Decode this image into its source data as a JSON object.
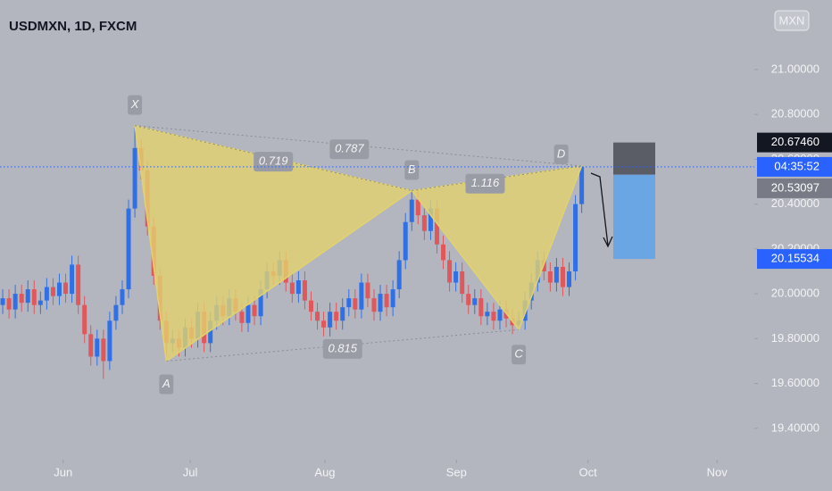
{
  "chart_data": {
    "type": "candlestick",
    "title": "USDMXN, 1D, FXCM",
    "currency": "MXN",
    "x": [
      0,
      1,
      2,
      3,
      4,
      5,
      6,
      7,
      8,
      9,
      10,
      11,
      12,
      13,
      14,
      15,
      16,
      17,
      18,
      19,
      20,
      21,
      22,
      23,
      24,
      25,
      26,
      27,
      28,
      29,
      30,
      31,
      32,
      33,
      34,
      35,
      36,
      37,
      38,
      39,
      40,
      41,
      42,
      43,
      44,
      45,
      46,
      47,
      48,
      49,
      50,
      51,
      52,
      53,
      54,
      55,
      56,
      57,
      58,
      59,
      60,
      61,
      62,
      63,
      64,
      65,
      66,
      67,
      68,
      69,
      70,
      71,
      72,
      73,
      74,
      75,
      76,
      77,
      78,
      79,
      80,
      81,
      82,
      83,
      84,
      85,
      86,
      87,
      88,
      89,
      90,
      91,
      92
    ],
    "open": [
      19.95,
      19.98,
      19.93,
      20.0,
      19.96,
      20.02,
      19.95,
      19.97,
      20.03,
      19.99,
      20.05,
      20.0,
      20.13,
      19.95,
      19.82,
      19.72,
      19.8,
      19.7,
      19.88,
      19.95,
      20.02,
      20.38,
      20.65,
      20.55,
      20.3,
      20.08,
      19.88,
      19.78,
      19.8,
      19.76,
      19.85,
      19.8,
      19.92,
      19.78,
      19.88,
      19.95,
      19.9,
      19.98,
      19.92,
      19.87,
      19.95,
      19.9,
      20.02,
      20.1,
      20.08,
      20.15,
      20.05,
      20.0,
      20.06,
      19.97,
      19.92,
      19.88,
      19.85,
      19.92,
      19.88,
      19.94,
      19.98,
      19.93,
      20.05,
      19.98,
      19.92,
      20.0,
      19.94,
      20.02,
      20.15,
      20.32,
      20.42,
      20.35,
      20.28,
      20.38,
      20.22,
      20.15,
      20.05,
      20.1,
      20.0,
      19.95,
      19.98,
      19.9,
      19.92,
      19.88,
      19.93,
      19.89,
      19.86,
      19.88,
      19.97,
      20.05,
      20.15,
      20.1,
      20.05,
      20.12,
      20.03,
      20.1,
      20.4
    ],
    "high": [
      20.02,
      20.02,
      20.04,
      20.04,
      20.06,
      20.06,
      20.01,
      20.07,
      20.07,
      20.09,
      20.09,
      20.17,
      20.17,
      19.99,
      19.86,
      19.84,
      19.84,
      19.92,
      19.99,
      20.06,
      20.42,
      20.75,
      20.69,
      20.59,
      20.34,
      20.12,
      19.92,
      19.84,
      19.84,
      19.89,
      19.89,
      19.96,
      19.96,
      19.92,
      19.99,
      19.99,
      20.02,
      20.02,
      19.96,
      19.99,
      19.99,
      20.06,
      20.14,
      20.14,
      20.19,
      20.19,
      20.09,
      20.1,
      20.1,
      20.01,
      19.96,
      19.92,
      19.96,
      19.96,
      19.98,
      20.02,
      20.02,
      20.09,
      20.09,
      20.02,
      20.04,
      20.04,
      20.06,
      20.19,
      20.36,
      20.46,
      20.46,
      20.39,
      20.42,
      20.42,
      20.26,
      20.19,
      20.14,
      20.14,
      20.04,
      20.02,
      20.02,
      19.96,
      19.96,
      19.97,
      19.97,
      19.93,
      19.92,
      20.01,
      20.09,
      20.19,
      20.19,
      20.14,
      20.16,
      20.16,
      20.14,
      20.44,
      20.57
    ],
    "low": [
      19.91,
      19.89,
      19.89,
      19.92,
      19.92,
      19.91,
      19.91,
      19.93,
      19.95,
      19.95,
      19.96,
      19.96,
      19.91,
      19.78,
      19.68,
      19.68,
      19.62,
      19.66,
      19.84,
      19.91,
      19.98,
      20.34,
      20.51,
      20.26,
      20.04,
      19.84,
      19.7,
      19.74,
      19.72,
      19.72,
      19.76,
      19.76,
      19.74,
      19.74,
      19.84,
      19.86,
      19.86,
      19.88,
      19.83,
      19.83,
      19.86,
      19.86,
      19.98,
      20.04,
      20.04,
      20.01,
      19.96,
      19.96,
      19.93,
      19.88,
      19.84,
      19.81,
      19.81,
      19.84,
      19.84,
      19.9,
      19.89,
      19.89,
      19.94,
      19.88,
      19.88,
      19.9,
      19.9,
      19.98,
      20.11,
      20.28,
      20.31,
      20.24,
      20.24,
      20.18,
      20.11,
      20.01,
      20.01,
      19.96,
      19.91,
      19.91,
      19.86,
      19.86,
      19.84,
      19.84,
      19.85,
      19.82,
      19.84,
      19.84,
      19.93,
      20.01,
      20.06,
      20.01,
      20.01,
      19.99,
      19.99,
      20.06,
      20.36
    ],
    "close": [
      19.98,
      19.93,
      20.0,
      19.96,
      20.02,
      19.95,
      19.97,
      20.03,
      19.99,
      20.05,
      20.0,
      20.13,
      19.95,
      19.82,
      19.72,
      19.8,
      19.7,
      19.88,
      19.95,
      20.02,
      20.38,
      20.65,
      20.55,
      20.3,
      20.08,
      19.88,
      19.78,
      19.8,
      19.76,
      19.85,
      19.8,
      19.92,
      19.78,
      19.88,
      19.95,
      19.9,
      19.98,
      19.92,
      19.87,
      19.95,
      19.9,
      20.02,
      20.1,
      20.08,
      20.15,
      20.05,
      20.0,
      20.06,
      19.97,
      19.92,
      19.88,
      19.85,
      19.92,
      19.88,
      19.94,
      19.98,
      19.93,
      20.05,
      19.98,
      19.92,
      20.0,
      19.94,
      20.02,
      20.15,
      20.32,
      20.42,
      20.35,
      20.28,
      20.38,
      20.22,
      20.15,
      20.05,
      20.1,
      20.0,
      19.95,
      19.98,
      19.9,
      19.92,
      19.88,
      19.93,
      19.89,
      19.86,
      19.88,
      19.97,
      20.05,
      20.15,
      20.1,
      20.05,
      20.12,
      20.03,
      20.1,
      20.4,
      20.566
    ],
    "up_color": "#3070e6",
    "down_color": "#e0575c",
    "xlim": [
      -0.43,
      119.43
    ],
    "xticks": [
      {
        "value": 9.6,
        "label": "Jun"
      },
      {
        "value": 29.8,
        "label": "Jul"
      },
      {
        "value": 51.2,
        "label": "Aug"
      },
      {
        "value": 72.1,
        "label": "Sep"
      },
      {
        "value": 93,
        "label": "Oct"
      },
      {
        "value": 113.5,
        "label": "Nov"
      }
    ],
    "ylim": [
      19.26,
      21.31
    ],
    "yticks": [
      {
        "value": 19.4,
        "label": "19.40000"
      },
      {
        "value": 19.6,
        "label": "19.60000"
      },
      {
        "value": 19.8,
        "label": "19.80000"
      },
      {
        "value": 20,
        "label": "20.00000"
      },
      {
        "value": 20.2,
        "label": "20.20000"
      },
      {
        "value": 20.4,
        "label": "20.40000"
      },
      {
        "value": 20.6,
        "label": "20.60000"
      },
      {
        "value": 20.8,
        "label": "20.80000"
      },
      {
        "value": 21,
        "label": "21.00000"
      }
    ],
    "pattern": {
      "color": "#e2d26e",
      "points": [
        {
          "label": "X",
          "x": 21,
          "price": 20.75
        },
        {
          "label": "A",
          "x": 26,
          "price": 19.7
        },
        {
          "label": "B",
          "x": 65,
          "price": 20.46
        },
        {
          "label": "C",
          "x": 82,
          "price": 19.84
        },
        {
          "label": "D",
          "x": 92,
          "price": 20.57
        }
      ],
      "ratios": [
        0.719,
        0.787,
        1.116,
        0.815
      ]
    },
    "position": {
      "stop": {
        "value": 20.6746,
        "label": "20.67460"
      },
      "entry": {
        "value": 20.53097,
        "label": "20.53097"
      },
      "target": {
        "value": 20.15534,
        "label": "20.15534"
      }
    },
    "countdown": "04:35:52"
  }
}
